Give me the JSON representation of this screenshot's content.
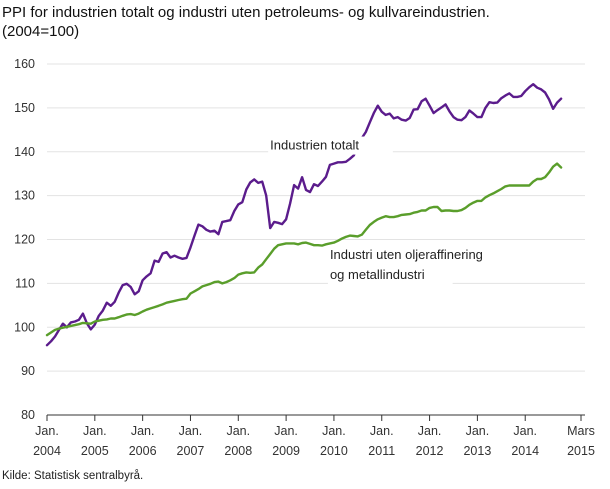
{
  "chart_data": {
    "type": "line",
    "title": "PPI for industrien totalt og industri uten petroleums- og kullvareindustrien.",
    "subtitle": "(2004=100)",
    "ylim": [
      80,
      160
    ],
    "yticks": [
      80,
      90,
      100,
      110,
      120,
      130,
      140,
      150,
      160
    ],
    "xlim": [
      0,
      135
    ],
    "xticks": [
      {
        "x": 0,
        "line1": "Jan.",
        "line2": "2004"
      },
      {
        "x": 12,
        "line1": "Jan.",
        "line2": "2005"
      },
      {
        "x": 24,
        "line1": "Jan.",
        "line2": "2006"
      },
      {
        "x": 36,
        "line1": "Jan.",
        "line2": "2007"
      },
      {
        "x": 48,
        "line1": "Jan.",
        "line2": "2008"
      },
      {
        "x": 60,
        "line1": "Jan.",
        "line2": "2009"
      },
      {
        "x": 72,
        "line1": "Jan.",
        "line2": "2010"
      },
      {
        "x": 84,
        "line1": "Jan.",
        "line2": "2011"
      },
      {
        "x": 96,
        "line1": "Jan.",
        "line2": "2012"
      },
      {
        "x": 108,
        "line1": "Jan.",
        "line2": "2013"
      },
      {
        "x": 120,
        "line1": "Jan.",
        "line2": "2014"
      },
      {
        "x": 134,
        "line1": "Mars",
        "line2": "2015"
      }
    ],
    "series": [
      {
        "name": "Industrien totalt",
        "color": "#5b1c8c",
        "values": [
          95.9,
          96.8,
          97.9,
          99.4,
          100.8,
          100,
          101.1,
          101.3,
          101.7,
          103.1,
          100.9,
          99.5,
          100.6,
          102.6,
          103.8,
          105.6,
          104.9,
          105.8,
          107.9,
          109.6,
          109.9,
          109.2,
          107.5,
          108.2,
          110.7,
          111.6,
          112.3,
          115.2,
          114.9,
          116.8,
          117.1,
          115.9,
          116.3,
          115.9,
          115.6,
          115.8,
          118.2,
          120.9,
          123.4,
          123,
          122.2,
          121.8,
          122,
          121.2,
          124,
          124.2,
          124.4,
          126.5,
          128,
          128.5,
          131.4,
          133,
          133.7,
          132.9,
          133.2,
          130,
          122.6,
          124,
          123.8,
          123.5,
          124.6,
          128.2,
          132.4,
          131.6,
          134.2,
          131.3,
          130.8,
          132.6,
          132.2,
          133.2,
          134.3,
          137,
          137.3,
          137.6,
          137.6,
          137.7,
          138.4,
          139.2,
          141.4,
          143.1,
          144.5,
          146.7,
          148.8,
          150.5,
          149.1,
          148.4,
          148.7,
          147.6,
          147.9,
          147.3,
          147.1,
          147.7,
          149.6,
          149.7,
          151.5,
          152.1,
          150.5,
          148.8,
          149.5,
          150.1,
          150.8,
          149.2,
          147.9,
          147.3,
          147.2,
          147.9,
          149.4,
          148.7,
          147.9,
          147.9,
          150,
          151.3,
          151.1,
          151.2,
          152.2,
          152.8,
          153.3,
          152.5,
          152.5,
          152.7,
          153.8,
          154.7,
          155.4,
          154.6,
          154.2,
          153.5,
          151.9,
          149.8,
          151.2,
          152.1
        ]
      },
      {
        "name": "Industri uten oljeraffinering og metallindustri",
        "color": "#5a9e2b",
        "values": [
          98.2,
          98.8,
          99.4,
          99.7,
          99.9,
          100.1,
          100.3,
          100.5,
          100.7,
          101,
          100.9,
          100.8,
          101.3,
          101.5,
          101.7,
          101.8,
          102,
          102,
          102.3,
          102.6,
          102.9,
          103,
          102.8,
          103.1,
          103.6,
          104,
          104.3,
          104.6,
          104.9,
          105.2,
          105.6,
          105.8,
          106,
          106.2,
          106.4,
          106.5,
          107.7,
          108.2,
          108.7,
          109.3,
          109.6,
          109.9,
          110.3,
          110.4,
          110,
          110.3,
          110.7,
          111.2,
          112,
          112.3,
          112.5,
          112.4,
          112.5,
          113.6,
          114.3,
          115.5,
          116.7,
          117.9,
          118.7,
          118.9,
          119.1,
          119.1,
          119.1,
          118.9,
          119.2,
          119.3,
          119,
          118.7,
          118.7,
          118.6,
          118.9,
          119.1,
          119.3,
          119.7,
          120.2,
          120.6,
          120.9,
          120.8,
          120.7,
          121.1,
          122.2,
          123.3,
          124,
          124.6,
          125,
          125.3,
          125.1,
          125.1,
          125.3,
          125.6,
          125.7,
          125.8,
          126.1,
          126.3,
          126.6,
          126.6,
          127.2,
          127.4,
          127.4,
          126.5,
          126.6,
          126.6,
          126.5,
          126.5,
          126.7,
          127.2,
          127.9,
          128.4,
          128.8,
          128.8,
          129.6,
          130.1,
          130.5,
          131,
          131.5,
          132.1,
          132.3,
          132.3,
          132.3,
          132.3,
          132.3,
          132.3,
          133.2,
          133.8,
          133.8,
          134.2,
          135.3,
          136.6,
          137.3,
          136.4
        ]
      }
    ],
    "annotations": [
      {
        "series": 0,
        "lines": [
          "Industrien totalt"
        ],
        "at": [
          56,
          140.5
        ]
      },
      {
        "series": 1,
        "lines": [
          "Industri uten oljeraffinering",
          "og metallindustri"
        ],
        "at": [
          71,
          115.5
        ]
      }
    ],
    "grid": "horizontal",
    "legend": "none"
  },
  "source": "Kilde: Statistisk sentralbyrå."
}
